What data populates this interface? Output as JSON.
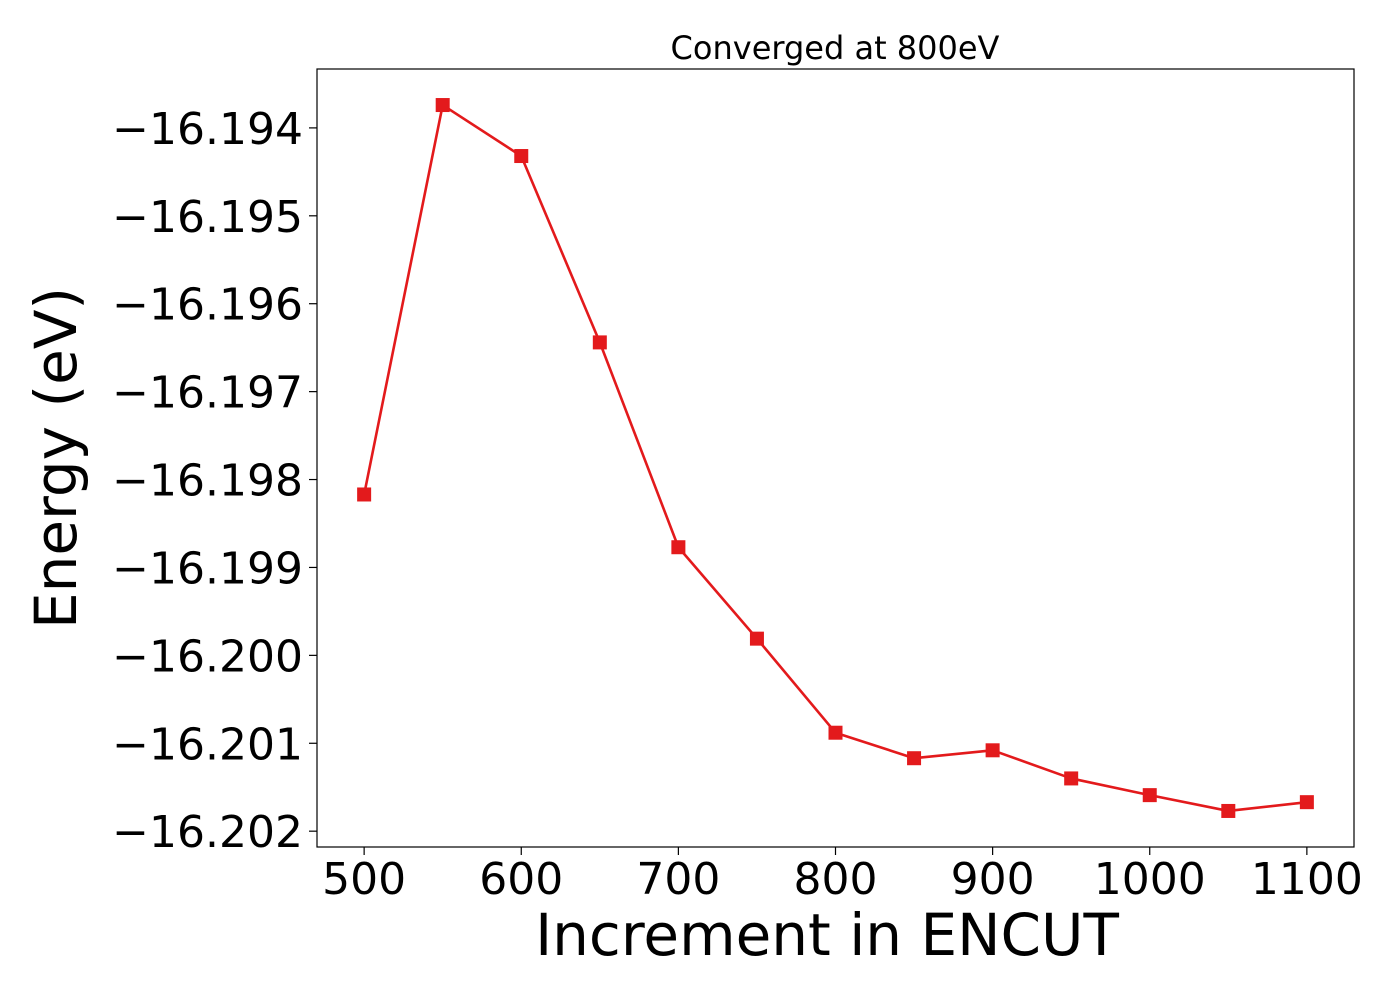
{
  "chart_data": {
    "type": "line",
    "title": "Converged at 800eV",
    "xlabel": "Increment in ENCUT",
    "ylabel": "Energy (eV)",
    "x": [
      500,
      550,
      600,
      650,
      700,
      750,
      800,
      850,
      900,
      950,
      1000,
      1050,
      1100
    ],
    "series": [
      {
        "values": [
          -16.19817,
          -16.19374,
          -16.19432,
          -16.19644,
          -16.19877,
          -16.19981,
          -16.20088,
          -16.20117,
          -16.20108,
          -16.2014,
          -16.20159,
          -16.20177,
          -16.20167
        ],
        "color": "#e31a1c",
        "marker": "square"
      }
    ],
    "xlim": [
      470,
      1130
    ],
    "ylim": [
      -16.20218,
      -16.19333
    ],
    "xticks": [
      500,
      600,
      700,
      800,
      900,
      1000,
      1100
    ],
    "xtick_labels": [
      "500",
      "600",
      "700",
      "800",
      "900",
      "1000",
      "1100"
    ],
    "yticks": [
      -16.194,
      -16.195,
      -16.196,
      -16.197,
      -16.198,
      -16.199,
      -16.2,
      -16.201,
      -16.202
    ],
    "ytick_labels": [
      "−16.194",
      "−16.195",
      "−16.196",
      "−16.197",
      "−16.198",
      "−16.199",
      "−16.200",
      "−16.201",
      "−16.202"
    ],
    "grid": false,
    "legend": "none"
  }
}
